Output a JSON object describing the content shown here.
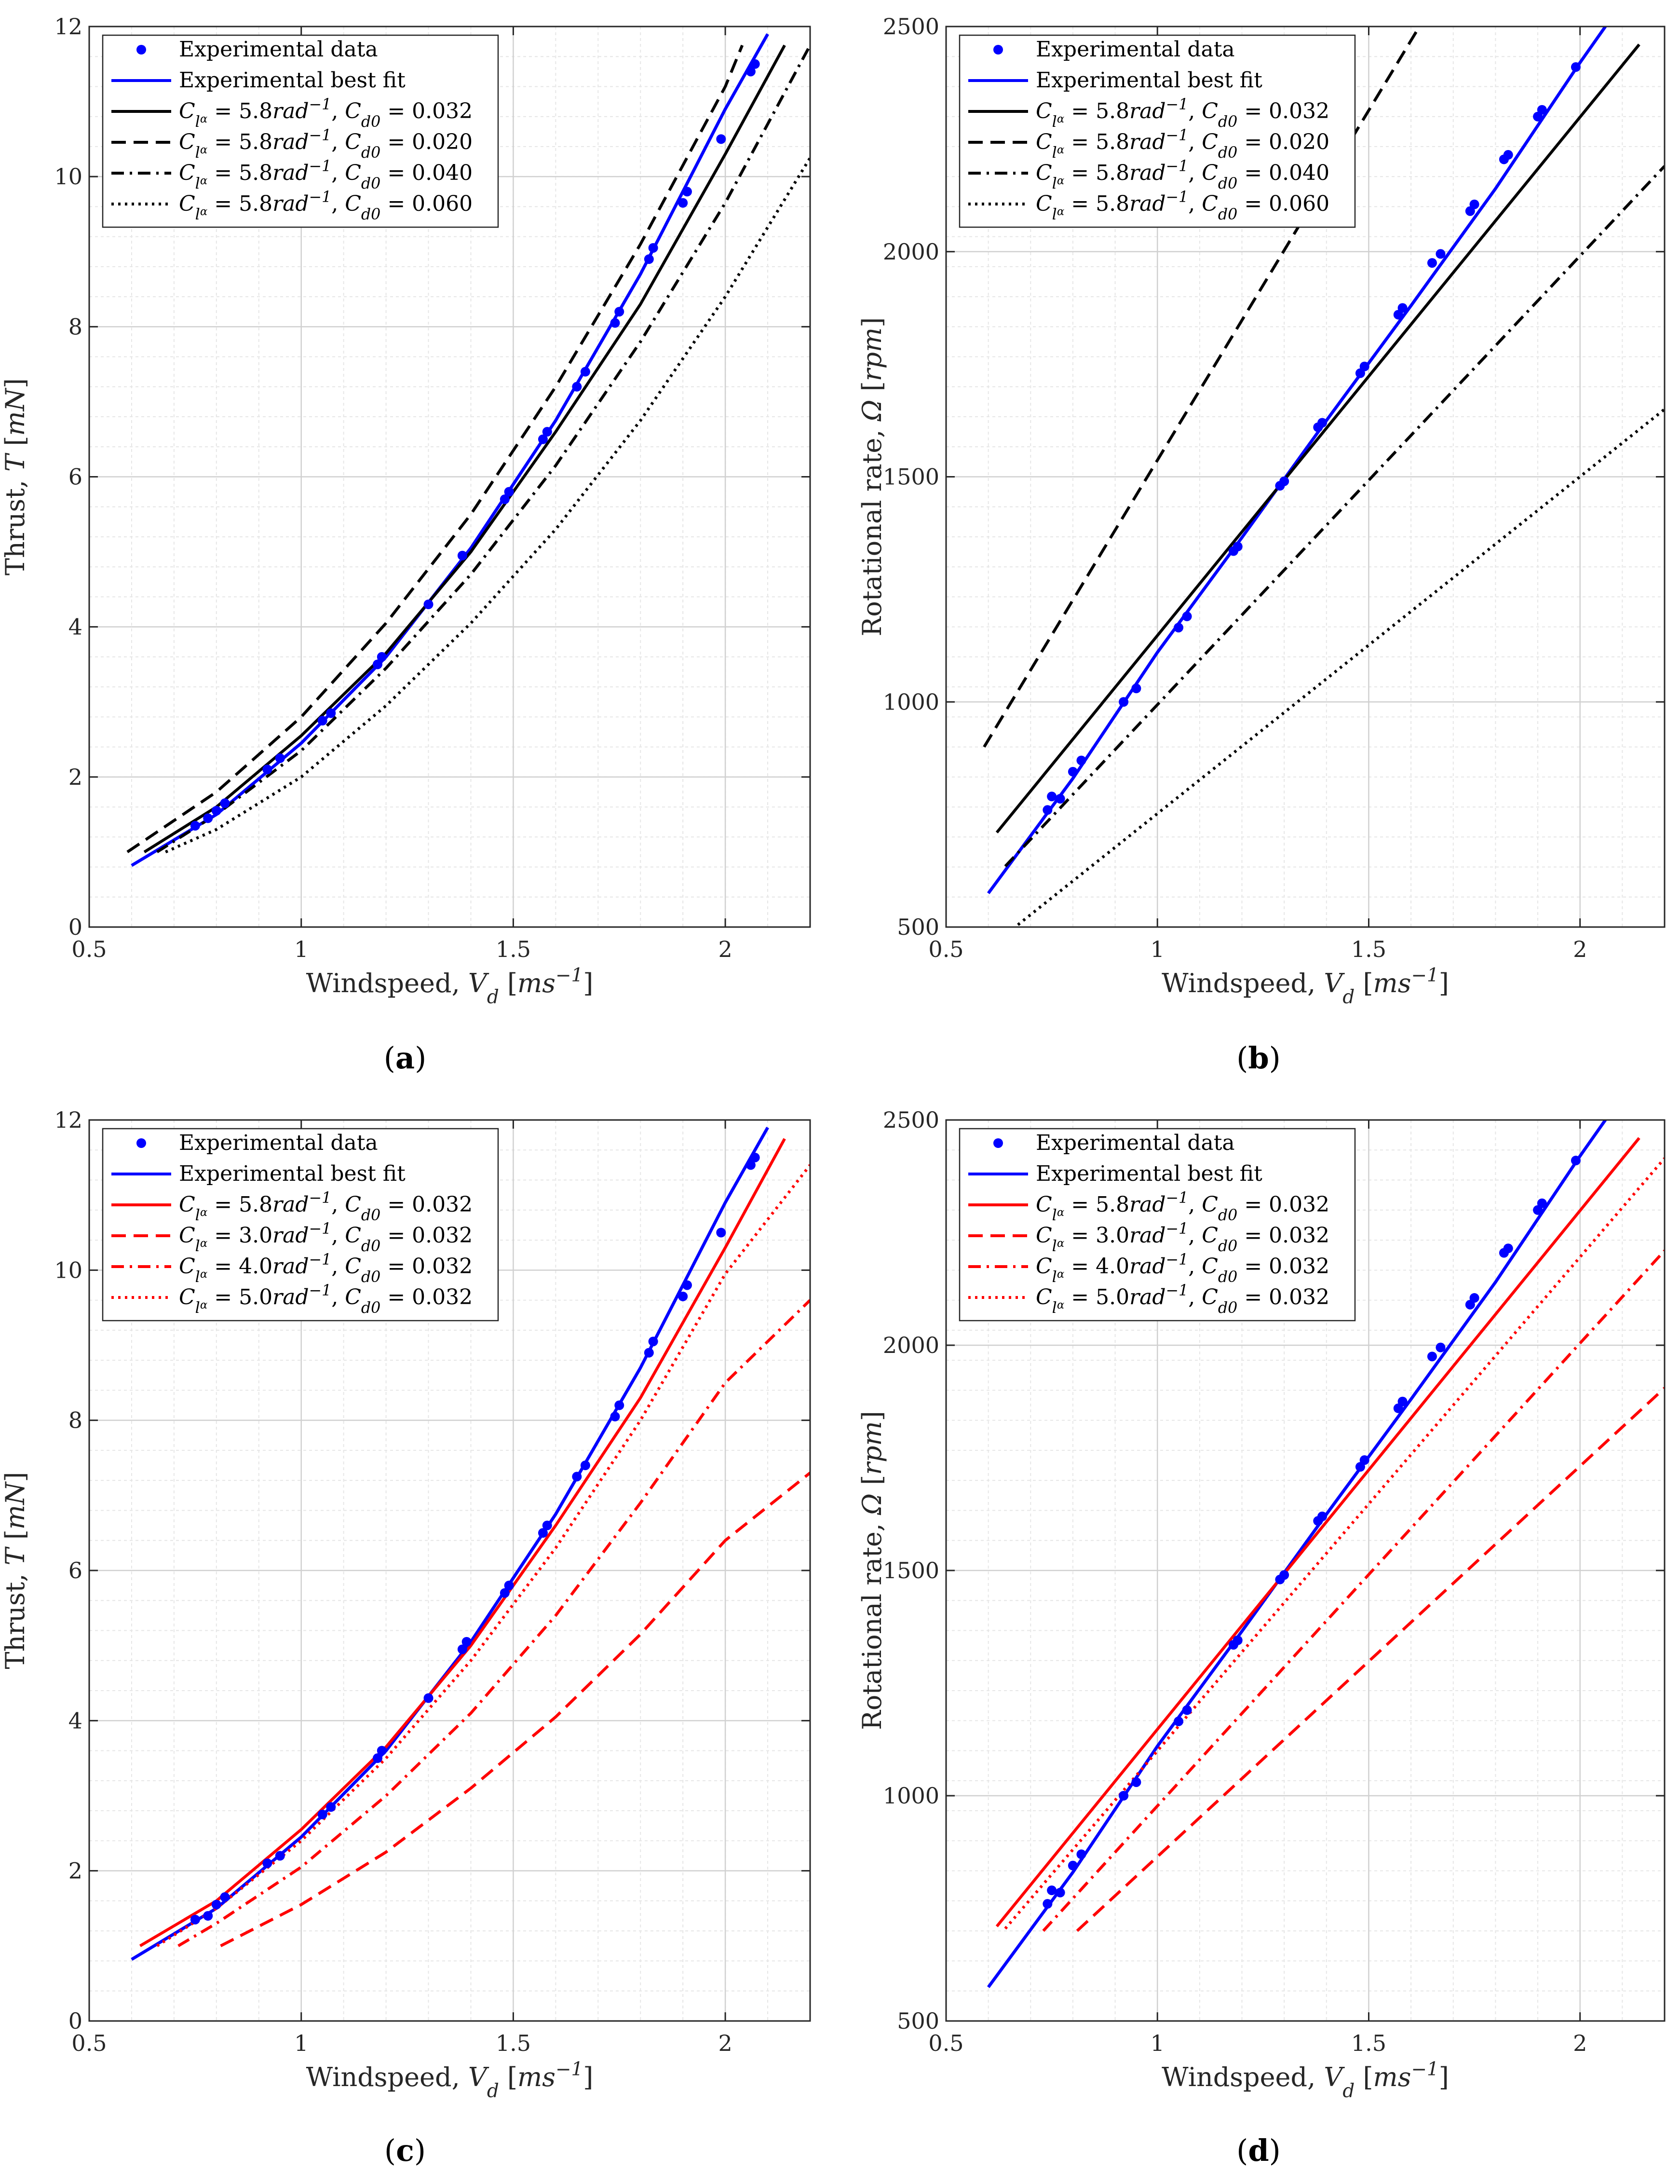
{
  "chart_data": [
    {
      "type": "line",
      "panel_label": "(a)",
      "xlabel": "Windspeed, V_d [ms^{-1}]",
      "ylabel": "Thrust, T [mN]",
      "xlim": [
        0.5,
        2.2
      ],
      "ylim": [
        0,
        12
      ],
      "xticks": [
        "0.5",
        "1",
        "1.5",
        "2"
      ],
      "yticks": [
        "0",
        "2",
        "4",
        "6",
        "8",
        "10",
        "12"
      ],
      "grid": true,
      "minor_grid": true,
      "legend_position": "top-left",
      "series": [
        {
          "name": "Experimental data",
          "kind": "scatter",
          "color": "#0000ff",
          "x": [
            0.75,
            0.78,
            0.8,
            0.82,
            0.92,
            0.95,
            1.05,
            1.07,
            1.18,
            1.19,
            1.3,
            1.38,
            1.48,
            1.49,
            1.57,
            1.58,
            1.65,
            1.67,
            1.74,
            1.75,
            1.82,
            1.83,
            1.9,
            1.91,
            1.99,
            2.06,
            2.07
          ],
          "y": [
            1.35,
            1.45,
            1.55,
            1.65,
            2.1,
            2.25,
            2.75,
            2.85,
            3.5,
            3.6,
            4.3,
            4.95,
            5.7,
            5.8,
            6.5,
            6.6,
            7.2,
            7.4,
            8.05,
            8.2,
            8.9,
            9.05,
            9.65,
            9.8,
            10.5,
            11.4,
            11.5
          ]
        },
        {
          "name": "Experimental best fit",
          "kind": "line",
          "color": "#0000ff",
          "dash": "solid",
          "x": [
            0.6,
            0.8,
            1.0,
            1.2,
            1.4,
            1.6,
            1.8,
            2.0,
            2.1
          ],
          "y": [
            0.82,
            1.5,
            2.45,
            3.6,
            5.05,
            6.75,
            8.7,
            10.9,
            11.9
          ]
        },
        {
          "name": "C_{l_α} = 5.8rad^{-1}, C_{d0} = 0.032",
          "kind": "line",
          "color": "#000000",
          "dash": "solid",
          "x": [
            0.63,
            0.8,
            1.0,
            1.2,
            1.4,
            1.6,
            1.8,
            2.0,
            2.14
          ],
          "y": [
            1.0,
            1.6,
            2.55,
            3.65,
            5.0,
            6.6,
            8.3,
            10.3,
            11.75
          ]
        },
        {
          "name": "C_{l_α} = 5.8rad^{-1}, C_{d0} = 0.020",
          "kind": "line",
          "color": "#000000",
          "dash": "dashed",
          "x": [
            0.59,
            0.8,
            1.0,
            1.2,
            1.4,
            1.6,
            1.8,
            2.0,
            2.04
          ],
          "y": [
            1.0,
            1.8,
            2.8,
            4.05,
            5.5,
            7.2,
            9.1,
            11.2,
            11.75
          ]
        },
        {
          "name": "C_{l_α} = 5.8rad^{-1}, C_{d0} = 0.040",
          "kind": "line",
          "color": "#000000",
          "dash": "dashdot",
          "x": [
            0.66,
            0.8,
            1.0,
            1.2,
            1.4,
            1.6,
            1.8,
            2.0,
            2.2
          ],
          "y": [
            1.0,
            1.5,
            2.35,
            3.45,
            4.7,
            6.15,
            7.8,
            9.65,
            11.75
          ]
        },
        {
          "name": "C_{l_α} = 5.8rad^{-1}, C_{d0} = 0.060",
          "kind": "line",
          "color": "#000000",
          "dash": "dotted",
          "x": [
            0.68,
            0.8,
            1.0,
            1.2,
            1.4,
            1.6,
            1.8,
            2.0,
            2.2
          ],
          "y": [
            1.0,
            1.3,
            2.0,
            2.95,
            4.05,
            5.3,
            6.75,
            8.4,
            10.25
          ]
        }
      ]
    },
    {
      "type": "line",
      "panel_label": "(b)",
      "xlabel": "Windspeed, V_d [ms^{-1}]",
      "ylabel": "Rotational rate, Ω [rpm]",
      "xlim": [
        0.5,
        2.2
      ],
      "ylim": [
        500,
        2500
      ],
      "xticks": [
        "0.5",
        "1",
        "1.5",
        "2"
      ],
      "yticks": [
        "500",
        "1000",
        "1500",
        "2000",
        "2500"
      ],
      "grid": true,
      "minor_grid": true,
      "legend_position": "top-left",
      "series": [
        {
          "name": "Experimental data",
          "kind": "scatter",
          "color": "#0000ff",
          "x": [
            0.74,
            0.75,
            0.77,
            0.8,
            0.82,
            0.92,
            0.95,
            1.05,
            1.07,
            1.18,
            1.19,
            1.29,
            1.3,
            1.38,
            1.39,
            1.48,
            1.49,
            1.57,
            1.58,
            1.65,
            1.67,
            1.74,
            1.75,
            1.82,
            1.83,
            1.9,
            1.91,
            1.99
          ],
          "y": [
            760,
            790,
            785,
            845,
            870,
            1000,
            1030,
            1165,
            1190,
            1335,
            1345,
            1480,
            1490,
            1610,
            1620,
            1730,
            1745,
            1860,
            1875,
            1975,
            1995,
            2090,
            2105,
            2205,
            2215,
            2300,
            2315,
            2410
          ]
        },
        {
          "name": "Experimental best fit",
          "kind": "line",
          "color": "#0000ff",
          "dash": "solid",
          "x": [
            0.6,
            0.8,
            1.0,
            1.2,
            1.4,
            1.6,
            1.8,
            2.0,
            2.06
          ],
          "y": [
            575,
            830,
            1110,
            1365,
            1625,
            1880,
            2140,
            2420,
            2500
          ]
        },
        {
          "name": "C_{l_α} = 5.8rad^{-1}, C_{d0} = 0.032",
          "kind": "line",
          "color": "#000000",
          "dash": "solid",
          "x": [
            0.62,
            2.14
          ],
          "y": [
            710,
            2460
          ]
        },
        {
          "name": "C_{l_α} = 5.8rad^{-1}, C_{d0} = 0.020",
          "kind": "line",
          "color": "#000000",
          "dash": "dashed",
          "x": [
            0.59,
            1.62
          ],
          "y": [
            900,
            2500
          ]
        },
        {
          "name": "C_{l_α} = 5.8rad^{-1}, C_{d0} = 0.040",
          "kind": "line",
          "color": "#000000",
          "dash": "dashdot",
          "x": [
            0.64,
            2.2
          ],
          "y": [
            635,
            2190
          ]
        },
        {
          "name": "C_{l_α} = 5.8rad^{-1}, C_{d0} = 0.060",
          "kind": "line",
          "color": "#000000",
          "dash": "dotted",
          "x": [
            0.67,
            2.2
          ],
          "y": [
            505,
            1650
          ]
        }
      ]
    },
    {
      "type": "line",
      "panel_label": "(c)",
      "xlabel": "Windspeed, V_d [ms^{-1}]",
      "ylabel": "Thrust, T [mN]",
      "xlim": [
        0.5,
        2.2
      ],
      "ylim": [
        0,
        12
      ],
      "xticks": [
        "0.5",
        "1",
        "1.5",
        "2"
      ],
      "yticks": [
        "0",
        "2",
        "4",
        "6",
        "8",
        "10",
        "12"
      ],
      "grid": true,
      "minor_grid": true,
      "legend_position": "top-left",
      "series": [
        {
          "name": "Experimental data",
          "kind": "scatter",
          "color": "#0000ff",
          "x": [
            0.75,
            0.78,
            0.8,
            0.82,
            0.92,
            0.95,
            1.05,
            1.07,
            1.18,
            1.19,
            1.3,
            1.38,
            1.39,
            1.48,
            1.49,
            1.57,
            1.58,
            1.65,
            1.67,
            1.74,
            1.75,
            1.82,
            1.83,
            1.9,
            1.91,
            1.99,
            2.06,
            2.07
          ],
          "y": [
            1.35,
            1.4,
            1.55,
            1.65,
            2.1,
            2.2,
            2.75,
            2.85,
            3.5,
            3.6,
            4.3,
            4.95,
            5.05,
            5.7,
            5.8,
            6.5,
            6.6,
            7.25,
            7.4,
            8.05,
            8.2,
            8.9,
            9.05,
            9.65,
            9.8,
            10.5,
            11.4,
            11.5
          ]
        },
        {
          "name": "Experimental best fit",
          "kind": "line",
          "color": "#0000ff",
          "dash": "solid",
          "x": [
            0.6,
            0.8,
            1.0,
            1.2,
            1.4,
            1.6,
            1.8,
            2.0,
            2.1
          ],
          "y": [
            0.82,
            1.5,
            2.45,
            3.6,
            5.05,
            6.75,
            8.7,
            10.9,
            11.9
          ]
        },
        {
          "name": "C_{l_α} = 5.8rad^{-1}, C_{d0} = 0.032",
          "kind": "line",
          "color": "#ff0000",
          "dash": "solid",
          "x": [
            0.62,
            0.8,
            1.0,
            1.2,
            1.4,
            1.6,
            1.8,
            2.0,
            2.14
          ],
          "y": [
            1.0,
            1.6,
            2.55,
            3.65,
            5.0,
            6.6,
            8.3,
            10.3,
            11.75
          ]
        },
        {
          "name": "C_{l_α} = 3.0rad^{-1}, C_{d0} = 0.032",
          "kind": "line",
          "color": "#ff0000",
          "dash": "dashed",
          "x": [
            0.81,
            1.0,
            1.2,
            1.4,
            1.6,
            1.8,
            2.0,
            2.2
          ],
          "y": [
            1.0,
            1.55,
            2.25,
            3.1,
            4.05,
            5.15,
            6.4,
            7.3
          ]
        },
        {
          "name": "C_{l_α} = 4.0rad^{-1}, C_{d0} = 0.032",
          "kind": "line",
          "color": "#ff0000",
          "dash": "dashdot",
          "x": [
            0.71,
            0.8,
            1.0,
            1.2,
            1.4,
            1.6,
            1.8,
            2.0,
            2.2
          ],
          "y": [
            1.0,
            1.3,
            2.05,
            3.0,
            4.1,
            5.4,
            6.9,
            8.5,
            9.6
          ]
        },
        {
          "name": "C_{l_α} = 5.0rad^{-1}, C_{d0} = 0.032",
          "kind": "line",
          "color": "#ff0000",
          "dash": "dotted",
          "x": [
            0.66,
            0.8,
            1.0,
            1.2,
            1.4,
            1.6,
            1.8,
            2.0,
            2.2
          ],
          "y": [
            1.0,
            1.5,
            2.4,
            3.5,
            4.8,
            6.3,
            8.0,
            9.95,
            11.4
          ]
        }
      ]
    },
    {
      "type": "line",
      "panel_label": "(d)",
      "xlabel": "Windspeed, V_d [ms^{-1}]",
      "ylabel": "Rotational rate, Ω [rpm]",
      "xlim": [
        0.5,
        2.2
      ],
      "ylim": [
        500,
        2500
      ],
      "xticks": [
        "0.5",
        "1",
        "1.5",
        "2"
      ],
      "yticks": [
        "500",
        "1000",
        "1500",
        "2000",
        "2500"
      ],
      "grid": true,
      "minor_grid": true,
      "legend_position": "top-left",
      "series": [
        {
          "name": "Experimental data",
          "kind": "scatter",
          "color": "#0000ff",
          "x": [
            0.74,
            0.75,
            0.77,
            0.8,
            0.82,
            0.92,
            0.95,
            1.05,
            1.07,
            1.18,
            1.19,
            1.29,
            1.3,
            1.38,
            1.39,
            1.48,
            1.49,
            1.57,
            1.58,
            1.65,
            1.67,
            1.74,
            1.75,
            1.82,
            1.83,
            1.9,
            1.91,
            1.99
          ],
          "y": [
            760,
            790,
            785,
            845,
            870,
            1000,
            1030,
            1165,
            1190,
            1335,
            1345,
            1480,
            1490,
            1610,
            1620,
            1730,
            1745,
            1860,
            1875,
            1975,
            1995,
            2090,
            2105,
            2205,
            2215,
            2300,
            2315,
            2410
          ]
        },
        {
          "name": "Experimental best fit",
          "kind": "line",
          "color": "#0000ff",
          "dash": "solid",
          "x": [
            0.6,
            0.8,
            1.0,
            1.2,
            1.4,
            1.6,
            1.8,
            2.0,
            2.06
          ],
          "y": [
            575,
            830,
            1110,
            1365,
            1625,
            1880,
            2140,
            2420,
            2500
          ]
        },
        {
          "name": "C_{l_α} = 5.8rad^{-1}, C_{d0} = 0.032",
          "kind": "line",
          "color": "#ff0000",
          "dash": "solid",
          "x": [
            0.62,
            2.14
          ],
          "y": [
            710,
            2460
          ]
        },
        {
          "name": "C_{l_α} = 3.0rad^{-1}, C_{d0} = 0.032",
          "kind": "line",
          "color": "#ff0000",
          "dash": "dashed",
          "x": [
            0.81,
            2.2
          ],
          "y": [
            700,
            1905
          ]
        },
        {
          "name": "C_{l_α} = 4.0rad^{-1}, C_{d0} = 0.032",
          "kind": "line",
          "color": "#ff0000",
          "dash": "dashdot",
          "x": [
            0.73,
            2.2
          ],
          "y": [
            700,
            2210
          ]
        },
        {
          "name": "C_{l_α} = 5.0rad^{-1}, C_{d0} = 0.032",
          "kind": "line",
          "color": "#ff0000",
          "dash": "dotted",
          "x": [
            0.64,
            2.2
          ],
          "y": [
            705,
            2415
          ]
        }
      ]
    }
  ]
}
